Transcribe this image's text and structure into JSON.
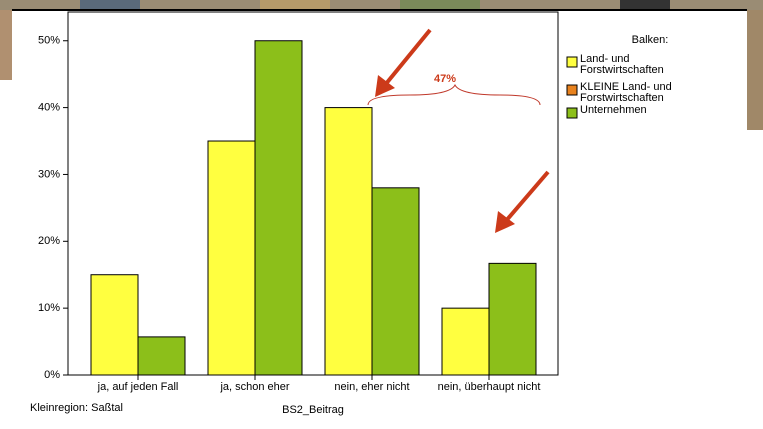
{
  "chart_data": {
    "type": "bar",
    "categories": [
      "ja, auf jeden Fall",
      "ja, schon eher",
      "nein, eher nicht",
      "nein, überhaupt nicht"
    ],
    "series": [
      {
        "name": "Land- und Forstwirtschaften",
        "color": "#ffff40",
        "values": [
          15,
          35,
          40,
          10
        ]
      },
      {
        "name": "KLEINE Land- und Forstwirtschaften",
        "color": "#e8821e",
        "values": [
          null,
          null,
          null,
          null
        ]
      },
      {
        "name": "Unternehmen",
        "color": "#8cbf1a",
        "values": [
          5.7,
          50,
          28,
          16.7
        ]
      }
    ],
    "ylim": [
      0,
      54.3
    ],
    "yticks": [
      {
        "value": 0,
        "label": "0%"
      },
      {
        "value": 10,
        "label": "10%"
      },
      {
        "value": 20,
        "label": "20%"
      },
      {
        "value": 30,
        "label": "30%"
      },
      {
        "value": 40,
        "label": "40%"
      },
      {
        "value": 50,
        "label": "50%"
      }
    ],
    "legend_title": "Balken:",
    "legend_position": "right",
    "x_label": "BS2_Beitrag",
    "footer": "Kleinregion: Saßtal",
    "annotation": "47%"
  }
}
